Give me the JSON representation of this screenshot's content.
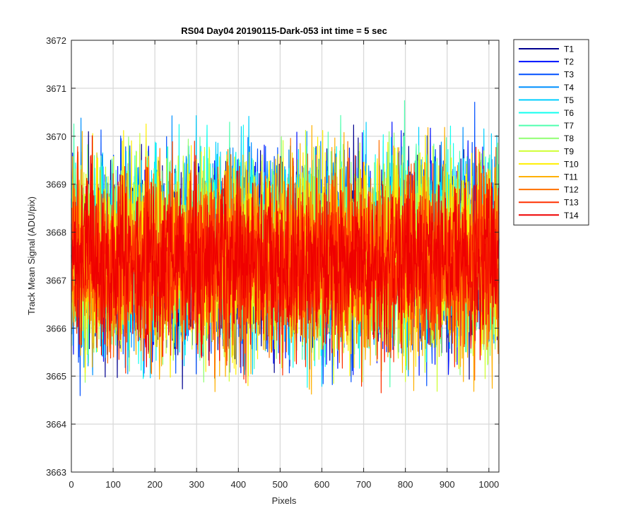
{
  "chart_data": {
    "type": "line",
    "title": "RS04 Day04 20190115-Dark-053 int time = 5 sec",
    "xlabel": "Pixels",
    "ylabel": "Track Mean Signal (ADU/pix)",
    "xlim": [
      0,
      1024
    ],
    "ylim": [
      3663,
      3672
    ],
    "xticks": [
      0,
      100,
      200,
      300,
      400,
      500,
      600,
      700,
      800,
      900,
      1000
    ],
    "yticks": [
      3663,
      3664,
      3665,
      3666,
      3667,
      3668,
      3669,
      3670,
      3671,
      3672
    ],
    "grid": true,
    "legend_position": "outside-top-right",
    "series": [
      {
        "name": "T1",
        "color": "#00008f",
        "mean": 3667.5,
        "spread": 1.1
      },
      {
        "name": "T2",
        "color": "#0010ff",
        "mean": 3667.5,
        "spread": 1.1
      },
      {
        "name": "T3",
        "color": "#0050ff",
        "mean": 3667.5,
        "spread": 1.1
      },
      {
        "name": "T4",
        "color": "#0090ff",
        "mean": 3667.6,
        "spread": 1.1
      },
      {
        "name": "T5",
        "color": "#00cfff",
        "mean": 3667.6,
        "spread": 1.1
      },
      {
        "name": "T6",
        "color": "#10ffef",
        "mean": 3667.6,
        "spread": 1.1
      },
      {
        "name": "T7",
        "color": "#50ffaf",
        "mean": 3667.6,
        "spread": 1.1
      },
      {
        "name": "T8",
        "color": "#8fff70",
        "mean": 3667.6,
        "spread": 1.1
      },
      {
        "name": "T9",
        "color": "#cfff30",
        "mean": 3667.5,
        "spread": 1.1
      },
      {
        "name": "T10",
        "color": "#ffef00",
        "mean": 3667.5,
        "spread": 1.1
      },
      {
        "name": "T11",
        "color": "#ffb000",
        "mean": 3667.4,
        "spread": 1.1
      },
      {
        "name": "T12",
        "color": "#ff7000",
        "mean": 3667.4,
        "spread": 1.0
      },
      {
        "name": "T13",
        "color": "#ff3000",
        "mean": 3667.4,
        "spread": 1.0
      },
      {
        "name": "T14",
        "color": "#ef0000",
        "mean": 3667.4,
        "spread": 1.0
      }
    ]
  }
}
